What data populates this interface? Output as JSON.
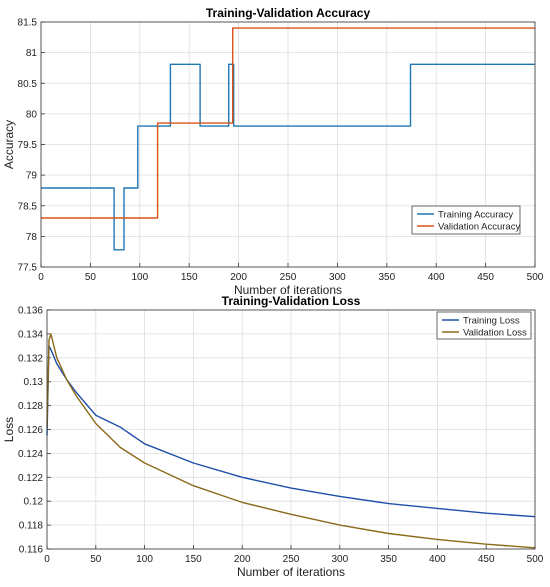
{
  "chart_data": [
    {
      "type": "line",
      "title": "Training-Validation Accuracy",
      "xlabel": "Number of iterations",
      "ylabel": "Accuracy",
      "xlim": [
        0,
        500
      ],
      "ylim": [
        77.5,
        81.5
      ],
      "xticks": [
        "0",
        "50",
        "100",
        "150",
        "200",
        "250",
        "300",
        "350",
        "400",
        "450",
        "500"
      ],
      "yticks": [
        "77.5",
        "78",
        "78.5",
        "79",
        "79.5",
        "80",
        "80.5",
        "81",
        "81.5"
      ],
      "grid": true,
      "legend": "bottom-right",
      "series": [
        {
          "name": "Training Accuracy",
          "color": "#1f77b4",
          "x": [
            0,
            74,
            74,
            84,
            84,
            98,
            98,
            131,
            131,
            161,
            161,
            190,
            190,
            195,
            195,
            374,
            374,
            500
          ],
          "y": [
            78.79,
            78.79,
            77.78,
            77.78,
            78.79,
            78.79,
            79.8,
            79.8,
            80.81,
            80.81,
            79.8,
            79.8,
            80.81,
            80.81,
            79.8,
            79.8,
            80.81,
            80.81
          ]
        },
        {
          "name": "Validation Accuracy",
          "color": "#d95319",
          "x": [
            0,
            118,
            118,
            194,
            194,
            500
          ],
          "y": [
            78.3,
            78.3,
            79.85,
            79.85,
            81.4,
            81.4
          ]
        }
      ]
    },
    {
      "type": "line",
      "title": "Training-Validation Loss",
      "xlabel": "Number of iterations",
      "ylabel": "Loss",
      "xlim": [
        0,
        500
      ],
      "ylim": [
        0.116,
        0.136
      ],
      "xticks": [
        "0",
        "50",
        "100",
        "150",
        "200",
        "250",
        "300",
        "350",
        "400",
        "450",
        "500"
      ],
      "yticks": [
        "0.116",
        "0.118",
        "0.12",
        "0.122",
        "0.124",
        "0.126",
        "0.128",
        "0.13",
        "0.132",
        "0.134",
        "0.136"
      ],
      "grid": true,
      "legend": "top-right",
      "series": [
        {
          "name": "Training Loss",
          "color": "#1f4fa8",
          "x": [
            0,
            2,
            5,
            10,
            20,
            30,
            50,
            75,
            100,
            150,
            200,
            250,
            300,
            350,
            400,
            450,
            500
          ],
          "y": [
            0.1255,
            0.133,
            0.1325,
            0.1315,
            0.1302,
            0.1291,
            0.1272,
            0.1262,
            0.1248,
            0.1232,
            0.122,
            0.1211,
            0.1204,
            0.1198,
            0.1194,
            0.119,
            0.1187
          ]
        },
        {
          "name": "Validation Loss",
          "color": "#8b6a1a",
          "x": [
            0,
            2,
            4,
            10,
            20,
            30,
            50,
            75,
            100,
            150,
            200,
            250,
            300,
            350,
            400,
            450,
            500
          ],
          "y": [
            0.1262,
            0.1335,
            0.134,
            0.132,
            0.1302,
            0.1288,
            0.1265,
            0.1245,
            0.1232,
            0.1213,
            0.1199,
            0.1189,
            0.118,
            0.1173,
            0.1168,
            0.1164,
            0.1161
          ]
        }
      ]
    }
  ]
}
